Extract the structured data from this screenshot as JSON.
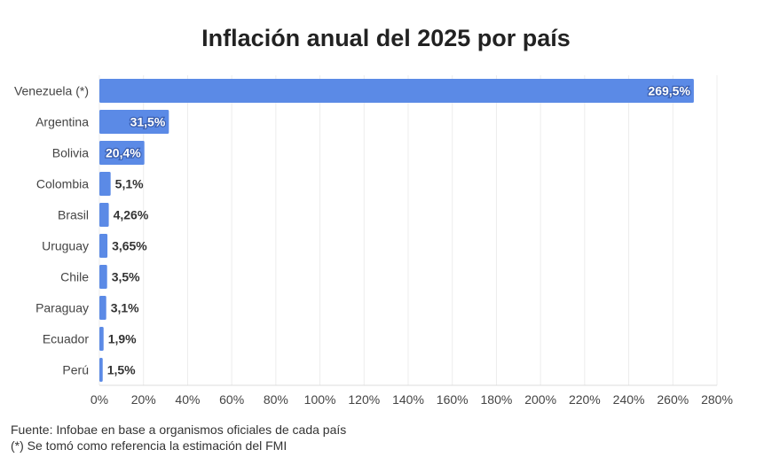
{
  "chart_data": {
    "type": "bar",
    "orientation": "horizontal",
    "title": "Inflación anual del 2025 por país",
    "categories": [
      "Venezuela (*)",
      "Argentina",
      "Bolivia",
      "Colombia",
      "Brasil",
      "Uruguay",
      "Chile",
      "Paraguay",
      "Ecuador",
      "Perú"
    ],
    "values": [
      269.5,
      31.5,
      20.4,
      5.1,
      4.26,
      3.65,
      3.5,
      3.1,
      1.9,
      1.5
    ],
    "value_labels": [
      "269,5%",
      "31,5%",
      "20,4%",
      "5,1%",
      "4,26%",
      "3,65%",
      "3,5%",
      "3,1%",
      "1,9%",
      "1,5%"
    ],
    "xlim": [
      0,
      280
    ],
    "x_ticks": [
      0,
      20,
      40,
      60,
      80,
      100,
      120,
      140,
      160,
      180,
      200,
      220,
      240,
      260,
      280
    ],
    "x_tick_labels": [
      "0%",
      "20%",
      "40%",
      "60%",
      "80%",
      "100%",
      "120%",
      "140%",
      "160%",
      "180%",
      "200%",
      "220%",
      "240%",
      "260%",
      "280%"
    ],
    "xlabel": "",
    "ylabel": "",
    "grid": true,
    "legend": "none",
    "bar_color": "#5b8ae6"
  },
  "footer": {
    "source": "Fuente: Infobae en base a organismos oficiales de cada país",
    "note": "(*) Se tomó como referencia la estimación del FMI"
  }
}
